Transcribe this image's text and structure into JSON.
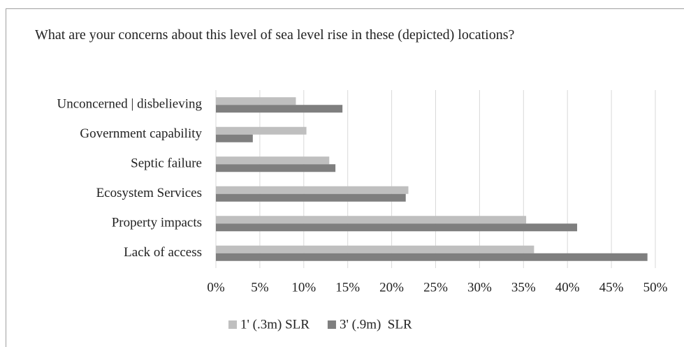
{
  "chart_data": {
    "type": "hbar",
    "title": "What are your concerns about this level of sea level rise in these (depicted) locations?",
    "categories": [
      "Unconcerned | disbelieving",
      "Government capability",
      "Septic failure",
      "Ecosystem Services",
      "Property impacts",
      "Lack of access"
    ],
    "series": [
      {
        "name": "1' (.3m) SLR",
        "color": "#bfbfbf",
        "values": [
          9.1,
          10.3,
          12.9,
          21.9,
          35.3,
          36.2
        ]
      },
      {
        "name": "3' (.9m)  SLR",
        "color": "#7f7f7f",
        "values": [
          14.4,
          4.2,
          13.6,
          21.6,
          41.1,
          49.1
        ]
      }
    ],
    "xlim": [
      0,
      50
    ],
    "xticks": [
      {
        "value": 0,
        "label": "0%"
      },
      {
        "value": 5,
        "label": "5%"
      },
      {
        "value": 10,
        "label": "10%"
      },
      {
        "value": 15,
        "label": "15%"
      },
      {
        "value": 20,
        "label": "20%"
      },
      {
        "value": 25,
        "label": "25%"
      },
      {
        "value": 30,
        "label": "30%"
      },
      {
        "value": 35,
        "label": "35%"
      },
      {
        "value": 40,
        "label": "40%"
      },
      {
        "value": 45,
        "label": "45%"
      },
      {
        "value": 50,
        "label": "50%"
      }
    ],
    "grid": true,
    "legend": "bottom"
  }
}
